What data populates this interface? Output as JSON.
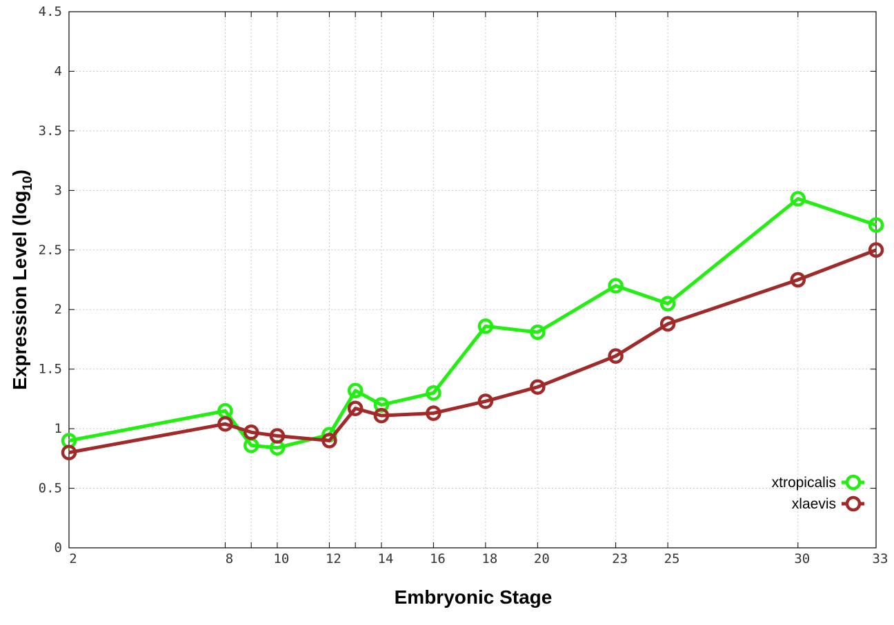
{
  "chart_data": {
    "type": "line",
    "xlabel": "Embryonic Stage",
    "ylabel_main": "Expression Level (log",
    "ylabel_sub": "10",
    "ylabel_end": ")",
    "ylim": [
      0,
      4.5
    ],
    "yticks": [
      0,
      0.5,
      1,
      1.5,
      2,
      2.5,
      3,
      3.5,
      4,
      4.5
    ],
    "ytick_labels": [
      "0",
      "0.5",
      "1",
      "1.5",
      "2",
      "2.5",
      "3",
      "3.5",
      "4",
      "4.5"
    ],
    "x": [
      "2",
      "8",
      "9",
      "10",
      "12",
      "13",
      "14",
      "16",
      "18",
      "20",
      "23",
      "25",
      "30",
      "33"
    ],
    "xtick_labels": [
      "2",
      "8",
      "",
      "10",
      "12",
      "",
      "14",
      "16",
      "18",
      "20",
      "23",
      "25",
      "30",
      "33"
    ],
    "grid": true,
    "legend_position": "bottom-right",
    "series": [
      {
        "name": "xtropicalis",
        "color": "#22ee11",
        "values": [
          0.9,
          1.15,
          0.86,
          0.84,
          0.95,
          1.32,
          1.2,
          1.3,
          1.86,
          1.81,
          2.2,
          2.05,
          2.93,
          2.71
        ]
      },
      {
        "name": "xlaevis",
        "color": "#a02a2a",
        "values": [
          0.8,
          1.04,
          0.97,
          0.94,
          0.9,
          1.17,
          1.11,
          1.13,
          1.23,
          1.35,
          1.61,
          1.88,
          2.25,
          2.5
        ]
      }
    ]
  }
}
